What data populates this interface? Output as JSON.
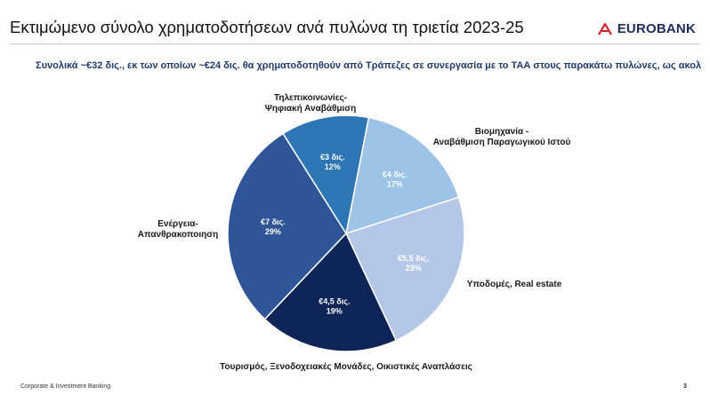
{
  "header": {
    "title": "Εκτιμώμενο σύνολο χρηματοδοτήσεων ανά πυλώνα τη τριετία 2023-25",
    "logo_text": "EUROBANK"
  },
  "subtitle": "Συνολικά ~€32 δις., εκ των οποίων ~€24 δις. θα χρηματοδοτηθούν από Τράπεζες σε συνεργασία με το  ΤΑΑ στους παρακάτω πυλώνες, ως ακολ",
  "footer": {
    "left": "Corporate & Investment Banking",
    "page_number": "3"
  },
  "colors": {
    "brand_navy": "#1b2d5a",
    "brand_red": "#d0202e"
  },
  "chart_data": {
    "type": "pie",
    "start_category": "Βιομηχανία - Αναβάθμιση Παραγωγικού Ιστού",
    "slices": [
      {
        "label_lines": [
          "Βιομηχανία -",
          "Αναβάθμιση Παραγωγικού Ιστού"
        ],
        "amount": "€4 δις.",
        "value": 17,
        "value_label": "17%",
        "color": "#9dc3e6",
        "text_color": "#ffffff"
      },
      {
        "label_lines": [
          "Υποδομές, Real estate"
        ],
        "amount": "€5,5 δις.",
        "value": 23,
        "value_label": "23%",
        "color": "#b4c7e7",
        "text_color": "#ffffff"
      },
      {
        "label_lines": [
          "Τουρισμός, Ξενοδοχειακές Μονάδες, Οικιστικές Αναπλάσεις"
        ],
        "amount": "€4,5 δις.",
        "value": 19,
        "value_label": "19%",
        "color": "#0f2557",
        "text_color": "#ffffff"
      },
      {
        "label_lines": [
          "Ενέργεια-",
          "Απανθρακοποιηση"
        ],
        "amount": "€7 δις.",
        "value": 29,
        "value_label": "29%",
        "color": "#2f5597",
        "text_color": "#ffffff"
      },
      {
        "label_lines": [
          "Τηλεπικοινωνίες-",
          "Ψηφιακή Αναβάθμιση"
        ],
        "amount": "€3 δις.",
        "value": 12,
        "value_label": "12%",
        "color": "#2e75b6",
        "text_color": "#ffffff"
      }
    ]
  }
}
